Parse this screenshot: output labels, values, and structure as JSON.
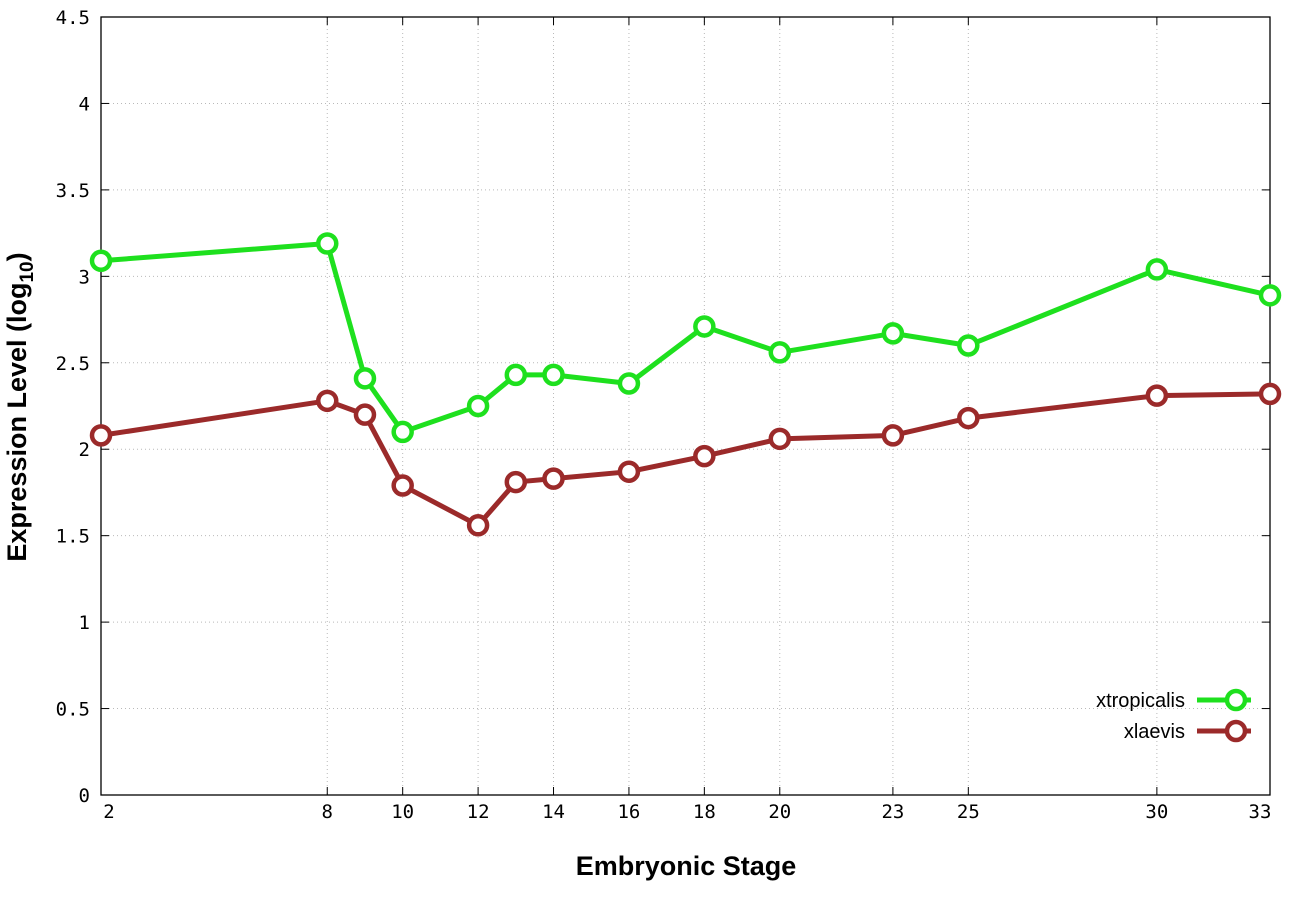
{
  "chart_data": {
    "type": "line",
    "title": "",
    "xlabel": "Embryonic Stage",
    "ylabel_main": "Expression Level (log",
    "ylabel_sub": "10",
    "ylabel_end": ")",
    "x": [
      2,
      8,
      9,
      10,
      12,
      13,
      14,
      16,
      18,
      20,
      23,
      25,
      30,
      33
    ],
    "xticks": [
      {
        "value": 2,
        "label": "2"
      },
      {
        "value": 8,
        "label": "8"
      },
      {
        "value": 10,
        "label": "10"
      },
      {
        "value": 12,
        "label": "12"
      },
      {
        "value": 14,
        "label": "14"
      },
      {
        "value": 16,
        "label": "16"
      },
      {
        "value": 18,
        "label": "18"
      },
      {
        "value": 20,
        "label": "20"
      },
      {
        "value": 23,
        "label": "23"
      },
      {
        "value": 25,
        "label": "25"
      },
      {
        "value": 30,
        "label": "30"
      },
      {
        "value": 33,
        "label": "33"
      }
    ],
    "yticks": [
      {
        "value": 0,
        "label": "0"
      },
      {
        "value": 0.5,
        "label": "0.5"
      },
      {
        "value": 1,
        "label": "1"
      },
      {
        "value": 1.5,
        "label": "1.5"
      },
      {
        "value": 2,
        "label": "2"
      },
      {
        "value": 2.5,
        "label": "2.5"
      },
      {
        "value": 3,
        "label": "3"
      },
      {
        "value": 3.5,
        "label": "3.5"
      },
      {
        "value": 4,
        "label": "4"
      },
      {
        "value": 4.5,
        "label": "4.5"
      }
    ],
    "xlim": [
      2,
      33
    ],
    "ylim": [
      0,
      4.5
    ],
    "grid": true,
    "legend_position": "bottom-right",
    "series": [
      {
        "name": "xtropicalis",
        "color": "#1ee01e",
        "values": [
          3.09,
          3.19,
          2.41,
          2.1,
          2.25,
          2.43,
          2.43,
          2.38,
          2.71,
          2.56,
          2.67,
          2.6,
          3.04,
          2.89
        ]
      },
      {
        "name": "xlaevis",
        "color": "#9b2a2a",
        "values": [
          2.08,
          2.28,
          2.2,
          1.79,
          1.56,
          1.81,
          1.83,
          1.87,
          1.96,
          2.06,
          2.08,
          2.18,
          2.31,
          2.32
        ]
      }
    ]
  }
}
